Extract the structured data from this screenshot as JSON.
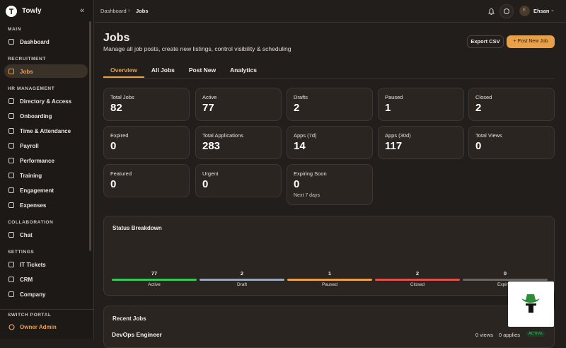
{
  "sidebar": {
    "brand": "Towly",
    "sections": [
      {
        "title": "MAIN",
        "items": [
          "Dashboard"
        ]
      },
      {
        "title": "RECRUITMENT",
        "items": [
          "Jobs"
        ]
      },
      {
        "title": "HR MANAGEMENT",
        "items": [
          "Directory & Access",
          "Onboarding",
          "Time & Attendance",
          "Payroll",
          "Performance",
          "Training",
          "Engagement",
          "Expenses"
        ]
      },
      {
        "title": "COLLABORATION",
        "items": [
          "Chat"
        ]
      },
      {
        "title": "SETTINGS",
        "items": [
          "IT Tickets",
          "CRM",
          "Company"
        ]
      }
    ],
    "portal_title": "SWITCH PORTAL",
    "portal": "Owner Admin"
  },
  "header": {
    "breadcrumb": [
      "Dashboard",
      "Jobs"
    ],
    "user_initial": "E",
    "user": "Ehsan"
  },
  "page": {
    "title": "Jobs",
    "subtitle": "Manage all job posts, create new listings, control visibility & scheduling",
    "buttons": [
      "Export CSV",
      "+ Post New Job"
    ],
    "tabs": [
      "Overview",
      "All Jobs",
      "Post New",
      "Analytics"
    ]
  },
  "stats": [
    {
      "label": "Total Jobs",
      "value": 82
    },
    {
      "label": "Active",
      "value": 77
    },
    {
      "label": "Drafts",
      "value": 2
    },
    {
      "label": "Paused",
      "value": 1
    },
    {
      "label": "Closed",
      "value": 2
    },
    {
      "label": "Expired",
      "value": 0
    },
    {
      "label": "Total Applications",
      "value": 283
    },
    {
      "label": "Apps (7d)",
      "value": 14
    },
    {
      "label": "Apps (30d)",
      "value": 117
    },
    {
      "label": "Total Views",
      "value": 0
    },
    {
      "label": "Featured",
      "value": 0
    },
    {
      "label": "Urgent",
      "value": 0
    },
    {
      "label": "Expiring Soon",
      "value": 0,
      "note": "Next 7 days"
    }
  ],
  "status": {
    "title": "Status Breakdown",
    "items": [
      {
        "label": "Active",
        "value": 77,
        "color": "#34c759"
      },
      {
        "label": "Draft",
        "value": 2,
        "color": "#9aa7b8"
      },
      {
        "label": "Paused",
        "value": 1,
        "color": "#e8a04a"
      },
      {
        "label": "Closed",
        "value": 2,
        "color": "#e0504a"
      },
      {
        "label": "Expired",
        "value": 0,
        "color": "#6b6661"
      }
    ]
  },
  "recent": {
    "title": "Recent Jobs",
    "rows": [
      {
        "title": "DevOps Engineer",
        "views": "0 views",
        "applies": "0 applies",
        "status": "ACTIVE"
      }
    ]
  }
}
